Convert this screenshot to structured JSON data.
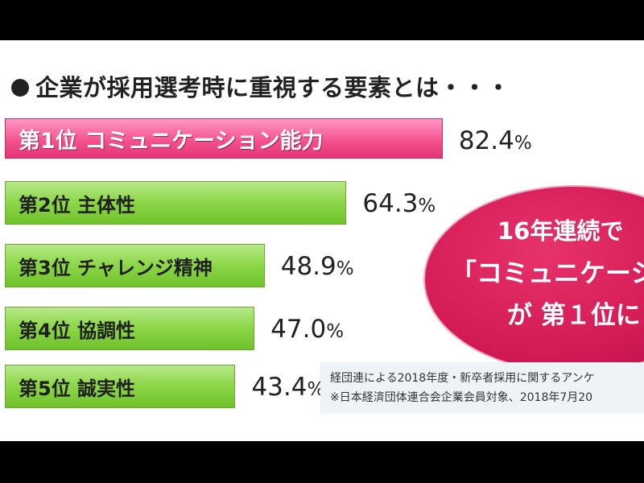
{
  "title": "企業が採用選考時に重視する要素とは・・・",
  "chart_data": {
    "type": "bar",
    "orientation": "horizontal",
    "unit": "%",
    "xlim": [
      0,
      100
    ],
    "items": [
      {
        "rank": "第1位",
        "label": "コミュニケーション能力",
        "value": 82.4,
        "display": "82.4",
        "color": "#f4538f"
      },
      {
        "rank": "第2位",
        "label": "主体性",
        "value": 64.3,
        "display": "64.3",
        "color": "#8fd84c"
      },
      {
        "rank": "第3位",
        "label": "チャレンジ精神",
        "value": 48.9,
        "display": "48.9",
        "color": "#8fd84c"
      },
      {
        "rank": "第4位",
        "label": "協調性",
        "value": 47.0,
        "display": "47.0",
        "color": "#8fd84c"
      },
      {
        "rank": "第5位",
        "label": "誠実性",
        "value": 43.4,
        "display": "43.4",
        "color": "#8fd84c"
      }
    ]
  },
  "callout": {
    "line1": "16年連続で",
    "line2": "「コミュニケーショ",
    "line3": "が 第１位に"
  },
  "note": {
    "line1": "経団連による2018年度・新卒者採用に関するアンケ",
    "line2": "※日本経済団体連合会企業会員対象、2018年7月20"
  },
  "colors": {
    "accent_pink": "#f4538f",
    "bar_green": "#8fd84c",
    "callout_red": "#d21a55"
  }
}
